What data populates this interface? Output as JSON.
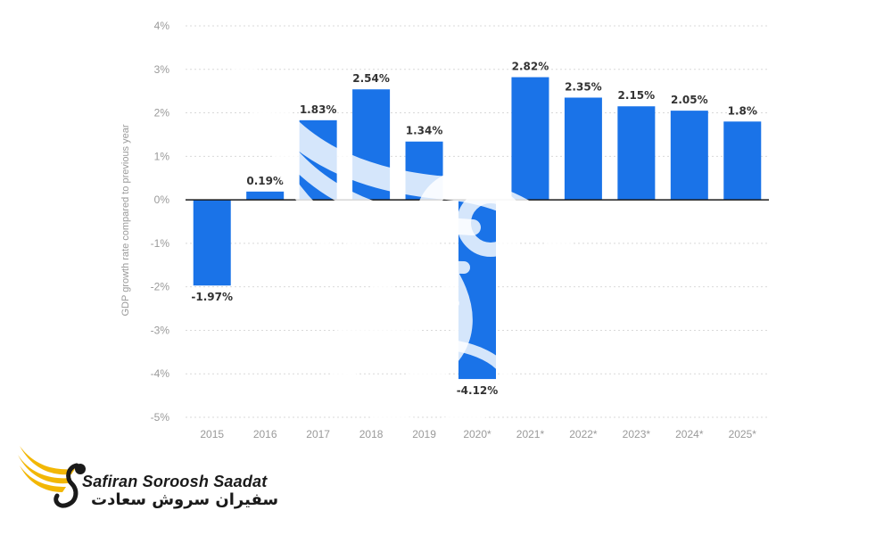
{
  "chart_data": {
    "type": "bar",
    "categories": [
      "2015",
      "2016",
      "2017",
      "2018",
      "2019",
      "2020*",
      "2021*",
      "2022*",
      "2023*",
      "2024*",
      "2025*"
    ],
    "values": [
      -1.97,
      0.19,
      1.83,
      2.54,
      1.34,
      -4.12,
      2.82,
      2.35,
      2.15,
      2.05,
      1.8
    ],
    "data_labels": [
      "-1.97%",
      "0.19%",
      "1.83%",
      "2.54%",
      "1.34%",
      "-4.12%",
      "2.82%",
      "2.35%",
      "2.15%",
      "2.05%",
      "1.8%"
    ],
    "title": "",
    "xlabel": "",
    "ylabel": "GDP growth rate compared to previous year",
    "ylim": [
      -5,
      4
    ],
    "y_ticks": [
      4,
      3,
      2,
      1,
      0,
      -1,
      -2,
      -3,
      -4,
      -5
    ],
    "y_tick_labels": [
      "4%",
      "3%",
      "2%",
      "1%",
      "0%",
      "-1%",
      "-2%",
      "-3%",
      "-4%",
      "-5%"
    ],
    "grid": true,
    "bar_color": "#1A73E8",
    "zero_line_color": "#1a1a1a"
  },
  "brand": {
    "name_en": "Safiran Soroosh Saadat",
    "name_fa": "سفیران سروش سعادت",
    "wing_color": "#F2B705",
    "dark_color": "#1a1a1a"
  }
}
